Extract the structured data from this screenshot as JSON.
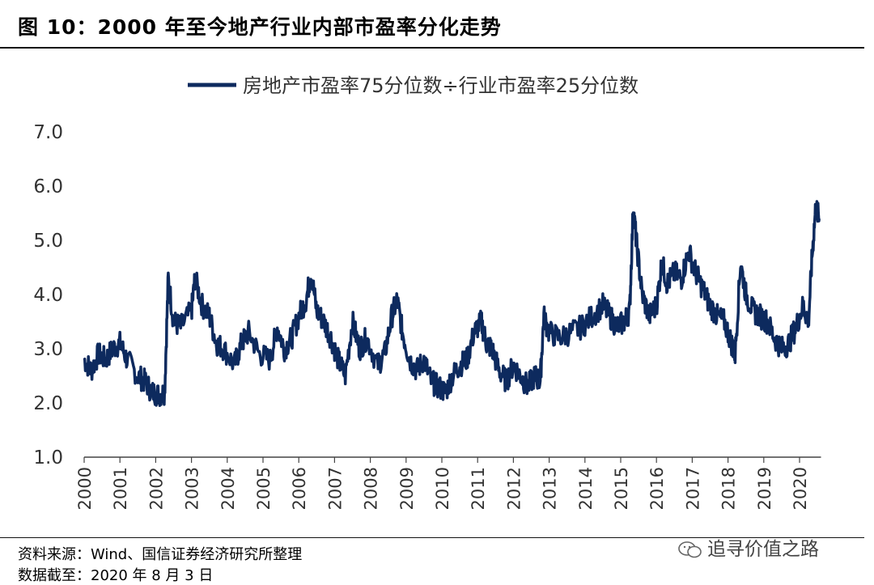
{
  "header": {
    "title": "图 10：2000 年至今地产行业内部市盈率分化走势"
  },
  "footer": {
    "source": "资料来源：Wind、国信证券经济研究所整理",
    "date": "数据截至：2020 年 8 月 3 日",
    "watermark": "追寻价值之路"
  },
  "colors": {
    "series": "#0d2a5e"
  },
  "chart_data": {
    "type": "line",
    "title": "",
    "xlabel": "",
    "ylabel": "",
    "ylim": [
      1.0,
      7.0
    ],
    "yticks": [
      "1.0",
      "2.0",
      "3.0",
      "4.0",
      "5.0",
      "6.0",
      "7.0"
    ],
    "xlim": [
      2000,
      2020.6
    ],
    "xticks": [
      "2000",
      "2001",
      "2002",
      "2003",
      "2004",
      "2005",
      "2006",
      "2007",
      "2008",
      "2009",
      "2010",
      "2011",
      "2012",
      "2013",
      "2014",
      "2015",
      "2016",
      "2017",
      "2018",
      "2019",
      "2020"
    ],
    "legend": {
      "position": "top-center"
    },
    "series": [
      {
        "name": "房地产市盈率75分位数÷行业市盈率25分位数",
        "x": [
          2000.0,
          2000.2,
          2000.4,
          2000.6,
          2000.8,
          2001.0,
          2001.2,
          2001.5,
          2001.7,
          2001.9,
          2002.1,
          2002.25,
          2002.35,
          2002.5,
          2002.7,
          2003.0,
          2003.1,
          2003.3,
          2003.5,
          2003.7,
          2003.9,
          2004.2,
          2004.4,
          2004.6,
          2004.9,
          2005.2,
          2005.4,
          2005.6,
          2005.8,
          2006.0,
          2006.2,
          2006.35,
          2006.5,
          2006.7,
          2006.9,
          2007.1,
          2007.3,
          2007.5,
          2007.7,
          2007.9,
          2008.2,
          2008.4,
          2008.6,
          2008.75,
          2008.9,
          2009.1,
          2009.3,
          2009.5,
          2009.7,
          2009.9,
          2010.1,
          2010.3,
          2010.5,
          2010.7,
          2010.9,
          2011.1,
          2011.25,
          2011.4,
          2011.6,
          2011.8,
          2012.0,
          2012.2,
          2012.4,
          2012.6,
          2012.75,
          2012.85,
          2013.0,
          2013.3,
          2013.6,
          2013.9,
          2014.2,
          2014.5,
          2014.7,
          2014.9,
          2015.1,
          2015.25,
          2015.35,
          2015.45,
          2015.6,
          2015.8,
          2016.0,
          2016.15,
          2016.3,
          2016.5,
          2016.7,
          2016.9,
          2017.1,
          2017.3,
          2017.5,
          2017.7,
          2017.9,
          2018.1,
          2018.2,
          2018.35,
          2018.5,
          2018.7,
          2018.9,
          2019.1,
          2019.3,
          2019.5,
          2019.7,
          2019.9,
          2020.1,
          2020.25,
          2020.35,
          2020.45,
          2020.55
        ],
        "values": [
          2.8,
          2.6,
          2.9,
          2.8,
          3.0,
          3.1,
          2.8,
          2.5,
          2.4,
          2.2,
          2.15,
          2.2,
          4.3,
          3.5,
          3.4,
          3.7,
          4.3,
          3.8,
          3.6,
          3.1,
          3.0,
          2.7,
          3.1,
          3.3,
          2.9,
          2.8,
          3.4,
          3.0,
          3.2,
          3.6,
          3.9,
          4.4,
          3.7,
          3.5,
          3.2,
          2.8,
          2.5,
          3.5,
          3.0,
          3.2,
          2.7,
          2.9,
          3.6,
          3.9,
          3.3,
          2.8,
          2.6,
          2.8,
          2.4,
          2.3,
          2.2,
          2.5,
          2.7,
          2.8,
          3.3,
          3.5,
          3.1,
          3.0,
          2.6,
          2.4,
          2.7,
          2.5,
          2.3,
          2.5,
          2.4,
          3.6,
          3.3,
          3.2,
          3.3,
          3.4,
          3.6,
          3.8,
          3.6,
          3.4,
          3.5,
          3.7,
          5.6,
          4.9,
          4.0,
          3.6,
          3.8,
          4.6,
          4.2,
          4.4,
          4.3,
          4.8,
          4.4,
          4.1,
          3.8,
          3.6,
          3.5,
          3.1,
          2.9,
          4.6,
          4.0,
          3.7,
          3.6,
          3.5,
          3.2,
          3.0,
          3.1,
          3.4,
          3.8,
          3.5,
          4.7,
          5.6,
          5.4
        ]
      }
    ]
  }
}
